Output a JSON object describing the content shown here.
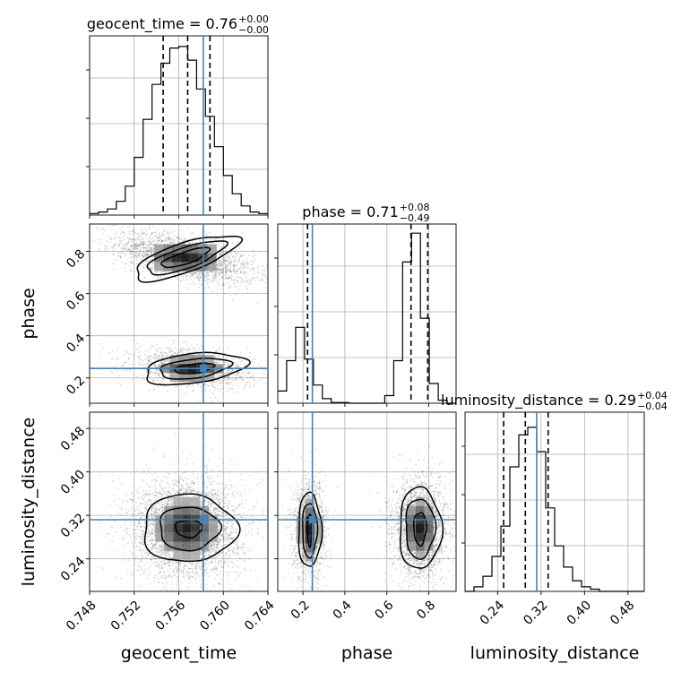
{
  "chart_data": {
    "type": "corner",
    "parameters": [
      "geocent_time",
      "phase",
      "luminosity_distance"
    ],
    "truths": {
      "geocent_time": 0.7582,
      "phase": 0.245,
      "luminosity_distance": 0.312
    },
    "ranges": {
      "geocent_time": [
        0.748,
        0.764
      ],
      "phase": [
        0.08,
        0.93
      ],
      "luminosity_distance": [
        0.18,
        0.51
      ]
    },
    "tick_labels": {
      "geocent_time": [
        "0.748",
        "0.752",
        "0.756",
        "0.760",
        "0.764"
      ],
      "phase": [
        "0.2",
        "0.4",
        "0.6",
        "0.8"
      ],
      "luminosity_distance": [
        "0.24",
        "0.32",
        "0.40",
        "0.48"
      ]
    },
    "titles": {
      "geocent_time": {
        "main": "geocent_time = 0.76",
        "sup": "+0.00",
        "sub": "−0.00"
      },
      "phase": {
        "main": "phase = 0.71",
        "sup": "+0.08",
        "sub": "−0.49"
      },
      "luminosity_distance": {
        "main": "luminosity_distance = 0.29",
        "sup": "+0.04",
        "sub": "−0.04"
      }
    },
    "quantiles": {
      "geocent_time": [
        0.7546,
        0.7568,
        0.7588
      ],
      "phase": [
        0.222,
        0.715,
        0.795
      ],
      "luminosity_distance": [
        0.251,
        0.291,
        0.333
      ]
    },
    "histograms": {
      "geocent_time": {
        "bin_edges": [
          0.748,
          0.7488,
          0.7496,
          0.7504,
          0.7512,
          0.752,
          0.7528,
          0.7536,
          0.7544,
          0.7552,
          0.756,
          0.7568,
          0.7576,
          0.7584,
          0.7592,
          0.76,
          0.7608,
          0.7616,
          0.7624,
          0.7632,
          0.764
        ],
        "counts": [
          1,
          2,
          4,
          9,
          19,
          38,
          63,
          86,
          100,
          110,
          111,
          102,
          83,
          65,
          45,
          26,
          14,
          6,
          2,
          1
        ],
        "ymax": 118
      },
      "phase": {
        "bin_edges": [
          0.08,
          0.1225,
          0.165,
          0.2075,
          0.25,
          0.2925,
          0.335,
          0.3775,
          0.42,
          0.4625,
          0.505,
          0.5475,
          0.59,
          0.6325,
          0.675,
          0.7175,
          0.76,
          0.8025,
          0.845,
          0.8875,
          0.93
        ],
        "counts": [
          8,
          28,
          50,
          29,
          12,
          3,
          0.5,
          0.5,
          0,
          0,
          0,
          0,
          5,
          28,
          93,
          112,
          56,
          13,
          2,
          0
        ],
        "ymax": 118
      },
      "luminosity_distance": {
        "bin_edges": [
          0.18,
          0.1965,
          0.213,
          0.2295,
          0.246,
          0.2625,
          0.279,
          0.2955,
          0.312,
          0.3285,
          0.345,
          0.3615,
          0.378,
          0.3945,
          0.411,
          0.4275,
          0.444,
          0.4605,
          0.477,
          0.4935,
          0.51
        ],
        "counts": [
          0,
          3,
          10,
          23,
          43,
          82,
          103,
          108,
          92,
          55,
          30,
          16,
          7,
          3,
          1.5,
          0,
          0,
          0,
          0,
          0
        ],
        "ymax": 118
      }
    },
    "density_clusters": [
      {
        "x": "geocent_time",
        "y": "phase",
        "cx": 0.7566,
        "cy": 0.77,
        "sx": 0.0023,
        "sy": 0.045,
        "rho": -0.55,
        "n": 2600
      },
      {
        "x": "geocent_time",
        "y": "phase",
        "cx": 0.7572,
        "cy": 0.245,
        "sx": 0.002,
        "sy": 0.035,
        "rho": -0.3,
        "n": 1500
      },
      {
        "x": "geocent_time",
        "y": "luminosity_distance",
        "cx": 0.7567,
        "cy": 0.296,
        "sx": 0.0018,
        "sy": 0.034,
        "rho": 0.0,
        "n": 4000
      },
      {
        "x": "phase",
        "y": "luminosity_distance",
        "cx": 0.232,
        "cy": 0.293,
        "sx": 0.03,
        "sy": 0.034,
        "rho": 0.0,
        "n": 1400
      },
      {
        "x": "phase",
        "y": "luminosity_distance",
        "cx": 0.758,
        "cy": 0.296,
        "sx": 0.048,
        "sy": 0.034,
        "rho": 0.0,
        "n": 2600
      }
    ],
    "contours": [
      {
        "x": "geocent_time",
        "y": "phase",
        "cx": 0.7566,
        "cy": 0.77,
        "rx": [
          0.00225,
          0.0037,
          0.0049
        ],
        "ry": [
          0.028,
          0.05,
          0.07
        ],
        "rot": -0.33
      },
      {
        "x": "geocent_time",
        "y": "phase",
        "cx": 0.7574,
        "cy": 0.245,
        "rx": [
          0.0018,
          0.0032,
          0.0046
        ],
        "ry": [
          0.022,
          0.045,
          0.07
        ],
        "rot": -0.12
      },
      {
        "x": "geocent_time",
        "y": "luminosity_distance",
        "cx": 0.7569,
        "cy": 0.296,
        "rx": [
          0.0012,
          0.0027,
          0.0042
        ],
        "ry": [
          0.016,
          0.04,
          0.062
        ],
        "rot": 0
      },
      {
        "x": "phase",
        "y": "luminosity_distance",
        "cx": 0.232,
        "cy": 0.293,
        "rx": [
          0.01,
          0.035,
          0.055
        ],
        "ry": [
          0.03,
          0.05,
          0.068
        ],
        "rot": 0
      },
      {
        "x": "phase",
        "y": "luminosity_distance",
        "cx": 0.758,
        "cy": 0.296,
        "rx": [
          0.03,
          0.07,
          0.1
        ],
        "ry": [
          0.03,
          0.055,
          0.075
        ],
        "rot": 0
      }
    ],
    "colors": {
      "truth": "#4682b4",
      "hist": "#000000",
      "grid": "#b0b0b0",
      "points": "#000000"
    },
    "grid": true
  }
}
